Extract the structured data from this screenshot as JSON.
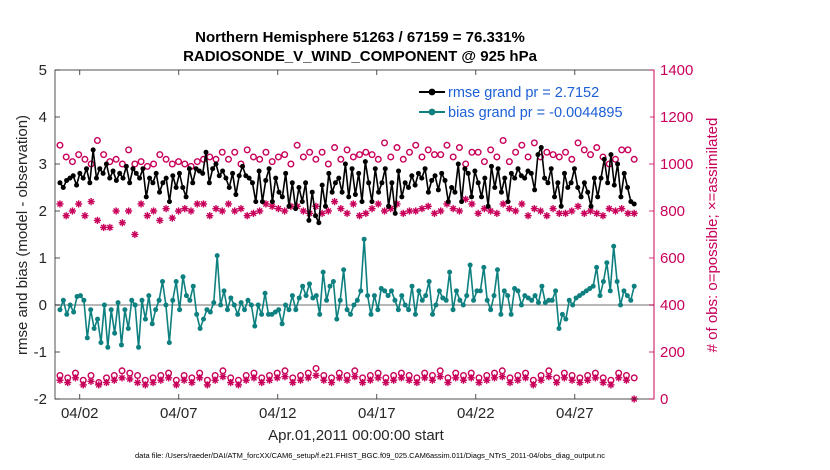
{
  "colors": {
    "rmse": "#000000",
    "bias": "#0f8080",
    "obs": "#c8005a",
    "legend_text": "#1c5fd6",
    "zero_line": "#a0a0a0"
  },
  "chart_data": {
    "type": "line",
    "title_line1": "Northern Hemisphere 51263 / 67159 = 76.331%",
    "title_line2": "RADIOSONDE_V_WIND_COMPONENT @ 925 hPa",
    "xlabel": "Apr.01,2011 00:00:00 start",
    "ylabel_left": "rmse and bias (model - observation)",
    "ylabel_right": "# of obs: o=possible; ×=assimilated",
    "footnote": "data file: /Users/raeder/DAI/ATM_forcXX/CAM6_setup/f.e21.FHIST_BGC.f09_025.CAM6assim.011/Diags_NTrS_2011-04/obs_diag_output.nc",
    "xlim": [
      0.75,
      31.0
    ],
    "ylim_left": [
      -2,
      5
    ],
    "ylim_right": [
      0,
      1400
    ],
    "xticks": [
      2,
      7,
      12,
      17,
      22,
      27
    ],
    "xtick_labels": [
      "04/02",
      "04/07",
      "04/12",
      "04/17",
      "04/22",
      "04/27"
    ],
    "yticks_left": [
      -2,
      -1,
      0,
      1,
      2,
      3,
      4,
      5
    ],
    "yticks_left_labels": [
      "-2",
      "-1",
      "0",
      "1",
      "2",
      "3",
      "4",
      "5"
    ],
    "yticks_right": [
      0,
      200,
      400,
      600,
      800,
      1000,
      1200,
      1400
    ],
    "yticks_right_labels": [
      "0",
      "200",
      "400",
      "600",
      "800",
      "1000",
      "1200",
      "1400"
    ],
    "legend": {
      "position": "top-right",
      "entries": [
        "rmse grand pr = 2.7152",
        "bias grand pr = -0.0044895"
      ]
    },
    "series": [
      {
        "name": "rmse",
        "values": [
          2.6,
          2.5,
          2.65,
          2.7,
          2.75,
          2.55,
          2.8,
          2.7,
          2.9,
          2.6,
          3.3,
          2.7,
          2.9,
          2.8,
          3.0,
          2.7,
          2.85,
          2.65,
          2.8,
          2.7,
          2.95,
          2.6,
          2.9,
          2.8,
          2.7,
          2.9,
          2.3,
          2.7,
          2.6,
          2.8,
          2.4,
          2.6,
          2.7,
          2.2,
          2.75,
          2.5,
          2.8,
          2.5,
          2.3,
          2.9,
          2.6,
          2.9,
          2.85,
          2.8,
          3.25,
          2.6,
          2.9,
          3.0,
          2.75,
          2.85,
          2.7,
          2.5,
          2.8,
          2.35,
          2.75,
          2.95,
          2.75,
          2.7,
          2.6,
          2.2,
          2.85,
          2.2,
          2.65,
          2.9,
          2.2,
          2.7,
          2.4,
          2.3,
          2.8,
          2.1,
          2.6,
          2.05,
          2.5,
          2.2,
          2.6,
          1.8,
          2.4,
          1.9,
          1.75,
          2.55,
          2.1,
          2.8,
          2.4,
          2.6,
          2.7,
          2.4,
          3.0,
          2.3,
          2.9,
          2.35,
          2.8,
          2.2,
          3.05,
          2.6,
          2.2,
          2.9,
          2.4,
          2.6,
          2.9,
          2.1,
          2.6,
          1.95,
          2.85,
          2.3,
          2.6,
          2.5,
          2.75,
          2.55,
          2.8,
          2.7,
          2.9,
          2.4,
          2.65,
          2.75,
          2.45,
          2.8,
          2.65,
          2.2,
          2.5,
          2.4,
          3.0,
          2.2,
          2.9,
          2.8,
          2.3,
          2.85,
          2.6,
          2.3,
          2.7,
          2.1,
          2.95,
          2.5,
          2.9,
          2.4,
          2.7,
          2.2,
          2.8,
          2.7,
          2.9,
          2.75,
          2.7,
          2.85,
          2.8,
          2.45,
          3.2,
          3.35,
          2.7,
          2.6,
          2.9,
          2.3,
          2.6,
          2.1,
          2.8,
          2.5,
          2.6,
          2.9,
          2.5,
          2.3,
          2.6,
          2.4,
          2.1,
          2.7,
          2.3,
          2.7,
          3.1,
          2.6,
          3.2,
          2.55,
          3.0,
          2.3,
          2.8,
          2.5,
          2.2,
          2.15
        ]
      },
      {
        "name": "bias",
        "values": [
          -0.1,
          0.1,
          -0.2,
          0.0,
          -0.15,
          0.18,
          0.2,
          0.1,
          -0.7,
          -0.1,
          -0.5,
          -0.3,
          -0.8,
          0.0,
          -0.9,
          -0.1,
          -0.6,
          0.05,
          -0.85,
          -0.1,
          -0.5,
          0.1,
          0.0,
          -0.9,
          0.1,
          -0.3,
          0.2,
          -0.4,
          -0.1,
          0.1,
          0.5,
          0.0,
          -0.8,
          0.1,
          0.5,
          -0.1,
          0.6,
          0.2,
          0.1,
          0.4,
          -0.2,
          -0.5,
          -0.3,
          -0.1,
          -0.15,
          0.05,
          1.05,
          0.0,
          0.3,
          -0.1,
          0.15,
          0.0,
          -0.2,
          0.05,
          -0.1,
          0.1,
          0.0,
          -0.45,
          0.0,
          -0.2,
          0.25,
          -0.2,
          -0.2,
          -0.15,
          -0.1,
          -0.4,
          0.0,
          -0.1,
          0.2,
          -0.1,
          0.15,
          0.4,
          0.2,
          0.45,
          0.15,
          0.2,
          -0.2,
          0.7,
          0.1,
          0.4,
          0.5,
          -0.3,
          0.1,
          0.75,
          -0.1,
          -0.2,
          0.0,
          0.1,
          0.3,
          1.4,
          0.2,
          -0.2,
          0.2,
          -0.1,
          0.35,
          0.3,
          0.2,
          0.3,
          0.1,
          -0.1,
          0.2,
          0.0,
          -0.1,
          0.4,
          -0.2,
          0.3,
          0.1,
          0.2,
          0.5,
          -0.2,
          0.0,
          0.3,
          0.15,
          0.1,
          0.7,
          -0.1,
          0.3,
          0.1,
          0.0,
          0.2,
          0.85,
          0.1,
          0.3,
          0.3,
          0.8,
          0.1,
          -0.1,
          0.2,
          0.75,
          -0.2,
          0.3,
          0.2,
          -0.2,
          0.35,
          0.3,
          0.0,
          0.2,
          0.15,
          0.1,
          0.2,
          0.05,
          0.4,
          0.05,
          0.1,
          0.1,
          0.3,
          -0.5,
          -0.2,
          -0.3,
          0.1,
          0.0,
          0.15,
          0.2,
          0.25,
          0.3,
          0.35,
          0.4,
          0.8,
          0.2,
          0.5,
          0.9,
          0.3,
          1.25,
          0.5,
          0.0,
          0.3,
          0.2,
          0.1,
          0.4
        ]
      },
      {
        "name": "obs possible (o), 925 hPa",
        "values": [
          1080,
          1030,
          1010,
          1040,
          1020,
          1000,
          1100,
          1040,
          1010,
          1020,
          1000,
          1060,
          1000,
          1010,
          990,
          1000,
          1040,
          1020,
          1000,
          1010,
          1000,
          990,
          1010,
          1020,
          1030,
          1020,
          1050,
          1020,
          1050,
          1000,
          1060,
          1030,
          1020,
          1050,
          1010,
          1030,
          1040,
          1000,
          1080,
          1030,
          1050,
          1020,
          1050,
          1000,
          1070,
          1020,
          1060,
          1030,
          1040,
          1050,
          1040,
          1020,
          1090,
          1030,
          1070,
          1020,
          1050,
          1080,
          1030,
          1060,
          1040,
          1040,
          1080,
          1030,
          1070,
          1000,
          1050,
          1050,
          1010,
          1060,
          1030,
          1100,
          1010,
          1050,
          1080,
          1030,
          1090,
          1030,
          1050,
          1040,
          1030,
          1050,
          1020,
          1090,
          1060,
          1040,
          1070,
          1030,
          1000,
          1020,
          1060,
          1060,
          1020
        ]
      },
      {
        "name": "obs assimilated (x), 925 hPa",
        "values": [
          830,
          780,
          800,
          830,
          780,
          840,
          760,
          730,
          730,
          800,
          750,
          800,
          700,
          830,
          780,
          800,
          760,
          810,
          770,
          800,
          810,
          800,
          830,
          830,
          780,
          810,
          800,
          830,
          800,
          810,
          780,
          790,
          800,
          830,
          820,
          810,
          800,
          820,
          820,
          800,
          790,
          820,
          790,
          800,
          840,
          810,
          790,
          830,
          780,
          790,
          810,
          830,
          800,
          810,
          830,
          790,
          800,
          800,
          810,
          820,
          790,
          800,
          830,
          810,
          800,
          850,
          830,
          790,
          810,
          800,
          790,
          830,
          810,
          800,
          830,
          780,
          810,
          800,
          780,
          810,
          790,
          790,
          800,
          820,
          790,
          800,
          790,
          780,
          810,
          800,
          810,
          790,
          790
        ]
      },
      {
        "name": "obs possible (o), lower band",
        "values": [
          100,
          90,
          110,
          80,
          100,
          70,
          90,
          100,
          120,
          110,
          100,
          80,
          90,
          100,
          110,
          80,
          100,
          90,
          110,
          80,
          100,
          120,
          90,
          80,
          100,
          110,
          90,
          100,
          110,
          120,
          90,
          100,
          110,
          130,
          100,
          90,
          110,
          100,
          120,
          90,
          100,
          110,
          90,
          100,
          110,
          100,
          90,
          110,
          100,
          120,
          90,
          110,
          100,
          110,
          90,
          100,
          110,
          120,
          90,
          100,
          110,
          80,
          100,
          120,
          90,
          110,
          100,
          90,
          100,
          110,
          90,
          80,
          110,
          100,
          90
        ]
      },
      {
        "name": "obs assimilated (x), lower band",
        "values": [
          80,
          70,
          90,
          60,
          75,
          60,
          70,
          80,
          90,
          85,
          70,
          60,
          70,
          80,
          90,
          60,
          80,
          70,
          90,
          60,
          80,
          95,
          70,
          60,
          80,
          90,
          70,
          80,
          90,
          95,
          70,
          80,
          90,
          100,
          80,
          70,
          90,
          80,
          95,
          70,
          80,
          90,
          70,
          80,
          90,
          80,
          70,
          90,
          80,
          95,
          70,
          90,
          80,
          90,
          70,
          80,
          90,
          95,
          70,
          80,
          90,
          60,
          80,
          95,
          70,
          90,
          80,
          70,
          80,
          90,
          70,
          60,
          90,
          80,
          0
        ]
      }
    ]
  }
}
